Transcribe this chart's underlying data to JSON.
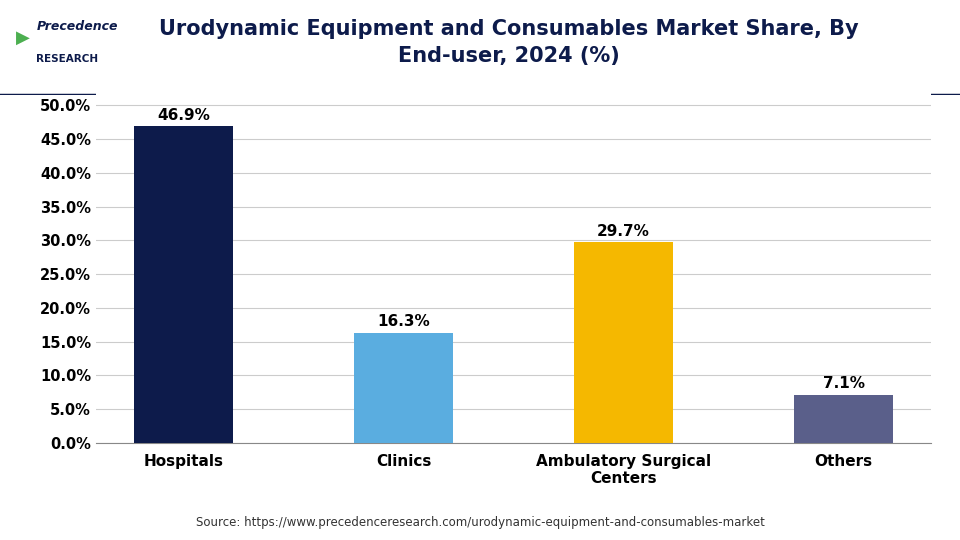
{
  "title_line1": "Urodynamic Equipment and Consumables Market Share, By",
  "title_line2": "End-user, 2024 (%)",
  "categories": [
    "Hospitals",
    "Clinics",
    "Ambulatory Surgical\nCenters",
    "Others"
  ],
  "values": [
    46.9,
    16.3,
    29.7,
    7.1
  ],
  "labels": [
    "46.9%",
    "16.3%",
    "29.7%",
    "7.1%"
  ],
  "bar_colors": [
    "#0d1b4b",
    "#5aade0",
    "#f5b800",
    "#5a5f8a"
  ],
  "ylim": [
    0,
    52
  ],
  "yticks": [
    0,
    5,
    10,
    15,
    20,
    25,
    30,
    35,
    40,
    45,
    50
  ],
  "ytick_labels": [
    "0.0%",
    "5.0%",
    "10.0%",
    "15.0%",
    "20.0%",
    "25.0%",
    "30.0%",
    "35.0%",
    "40.0%",
    "45.0%",
    "50.0%"
  ],
  "source_text": "Source: https://www.precedenceresearch.com/urodynamic-equipment-and-consumables-market",
  "background_color": "#ffffff",
  "grid_color": "#cccccc",
  "bar_width": 0.45,
  "label_fontsize": 11,
  "tick_fontsize": 10.5,
  "title_fontsize": 15,
  "source_fontsize": 8.5,
  "title_color": "#0d1b4b",
  "tick_color": "#000000",
  "header_border_color": "#0d1b4b",
  "logo_text_color": "#0d1b4b",
  "logo_green_color": "#4caf50"
}
